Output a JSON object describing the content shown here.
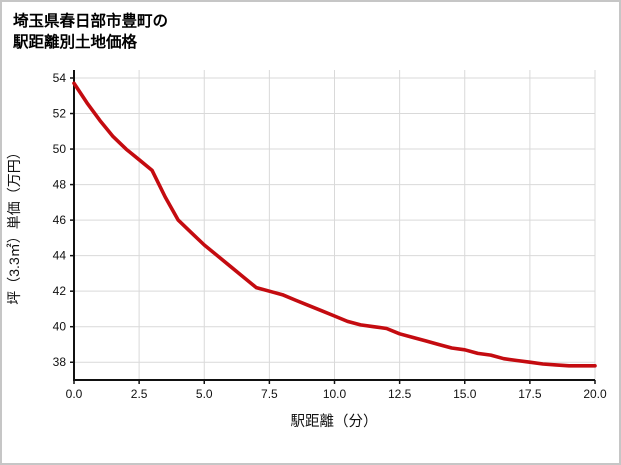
{
  "page": {
    "title_line1": "埼玉県春日部市豊町の",
    "title_line2": "駅距離別土地価格"
  },
  "chart_data": {
    "type": "line",
    "title": "埼玉県春日部市豊町の駅距離別土地価格",
    "xlabel": "駅距離（分）",
    "ylabel": "坪（3.3㎡）単価（万円）",
    "xlim": [
      0,
      20
    ],
    "ylim": [
      37.0,
      54.45
    ],
    "x_ticks": [
      0,
      2.5,
      5,
      7.5,
      10,
      12.5,
      15,
      17.5,
      20
    ],
    "x_tick_labels": [
      "0.0",
      "2.5",
      "5.0",
      "7.5",
      "10.0",
      "12.5",
      "15.0",
      "17.5",
      "20.0"
    ],
    "y_ticks": [
      38,
      40,
      42,
      44,
      46,
      48,
      50,
      52,
      54
    ],
    "y_tick_labels": [
      "38",
      "40",
      "42",
      "44",
      "46",
      "48",
      "50",
      "52",
      "54"
    ],
    "grid": true,
    "legend": false,
    "line_color": "#c40b10",
    "x": [
      0,
      0.5,
      1,
      1.5,
      2,
      2.5,
      3,
      3.5,
      4,
      4.5,
      5,
      5.5,
      6,
      6.5,
      7,
      7.5,
      8,
      8.5,
      9,
      9.5,
      10,
      10.5,
      11,
      11.5,
      12,
      12.5,
      13,
      13.5,
      14,
      14.5,
      15,
      15.5,
      16,
      16.5,
      17,
      17.5,
      18,
      18.5,
      19,
      19.5,
      20
    ],
    "y": [
      53.7,
      52.6,
      51.6,
      50.7,
      50.0,
      49.4,
      48.8,
      47.3,
      46.0,
      45.3,
      44.6,
      44.0,
      43.4,
      42.8,
      42.2,
      42.0,
      41.8,
      41.5,
      41.2,
      40.9,
      40.6,
      40.3,
      40.1,
      40.0,
      39.9,
      39.6,
      39.4,
      39.2,
      39.0,
      38.8,
      38.7,
      38.5,
      38.4,
      38.2,
      38.1,
      38.0,
      37.9,
      37.85,
      37.8,
      37.8,
      37.8
    ]
  },
  "style": {
    "grid_color": "#d9d9d9",
    "axis_color": "#111111",
    "background": "#ffffff",
    "border_color": "#c6c6c6"
  }
}
